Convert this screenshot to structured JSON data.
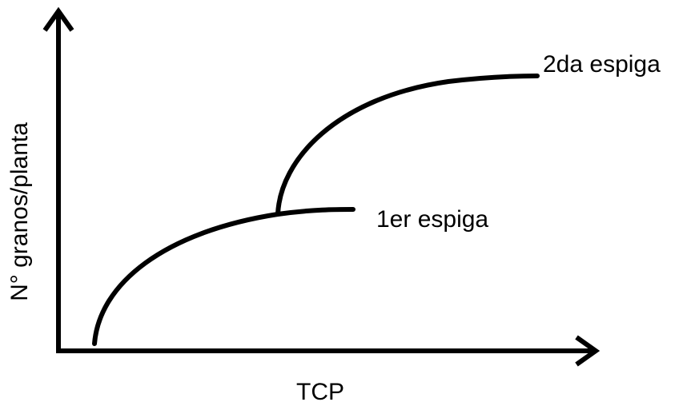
{
  "axes": {
    "x_label": "TCP",
    "y_label": "N° granos/planta"
  },
  "curves": [
    {
      "label": "1er espiga"
    },
    {
      "label": "2da espiga"
    }
  ]
}
